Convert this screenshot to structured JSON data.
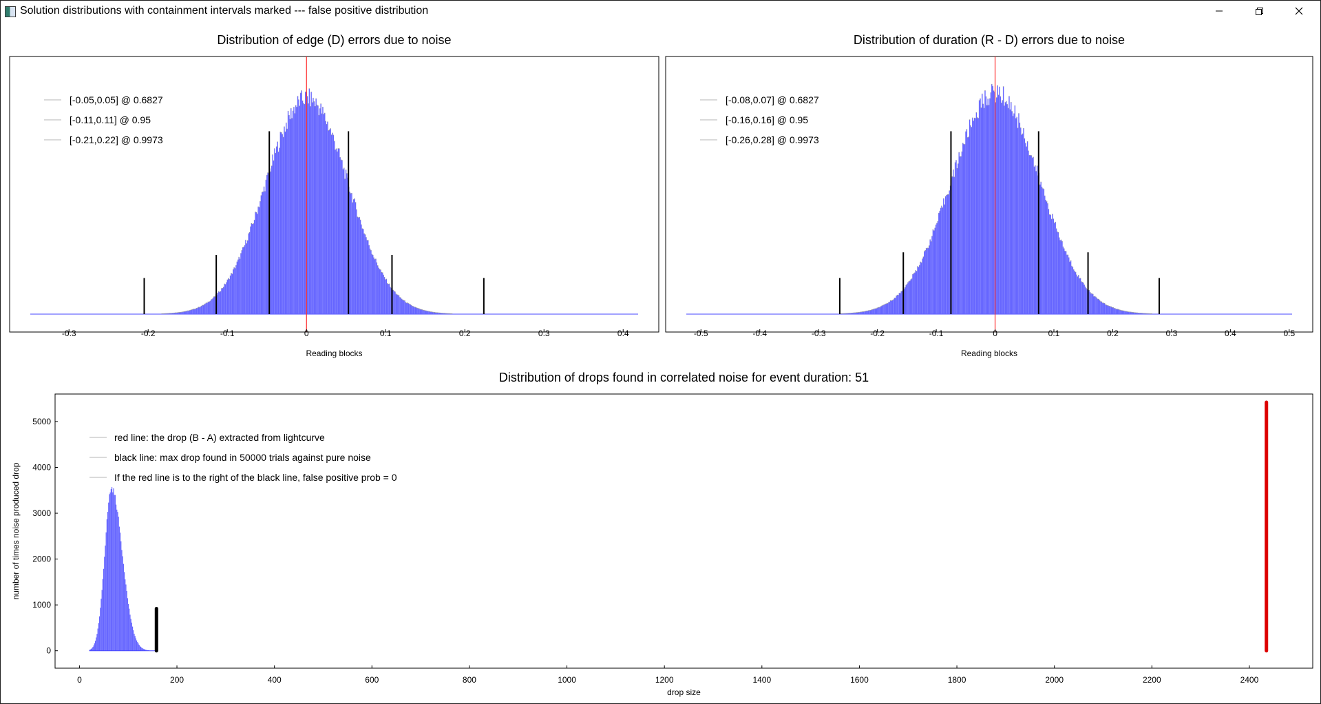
{
  "window": {
    "title": "Solution distributions with containment intervals marked --- false positive distribution",
    "icons": [
      "app-icon",
      "minimize-icon",
      "maximize-icon",
      "close-icon"
    ]
  },
  "colors": {
    "histogram_fill": "#6666ff",
    "histogram_edge": "#a0a0a0",
    "marker_black": "#000000",
    "center_red": "#ff2b2b",
    "drop_red": "#dd0000"
  },
  "chart_data": [
    {
      "type": "bar",
      "title": "Distribution of edge (D) errors due to noise",
      "xlabel": "Reading blocks",
      "ylabel": "",
      "xlim": [
        -0.375,
        0.445
      ],
      "xticks": [
        "-0.3",
        "-0.2",
        "-0.1",
        "0",
        "0.1",
        "0.2",
        "0.3",
        "0.4"
      ],
      "xtick_values": [
        -0.3,
        -0.2,
        -0.1,
        0,
        0.1,
        0.2,
        0.3,
        0.4
      ],
      "y_axis_labels_shown": false,
      "legend_position": "upper-left",
      "legend": [
        "[-0.05,0.05] @ 0.6827",
        "[-0.11,0.11] @ 0.95",
        "[-0.21,0.22] @ 0.9973"
      ],
      "distribution": {
        "shape": "gaussian-histogram",
        "center": 0.0,
        "sigma": 0.052,
        "peak_fraction": 0.86
      },
      "center_line_x": 0,
      "interval_markers": [
        {
          "x": -0.047,
          "height_fraction": 0.71
        },
        {
          "x": 0.053,
          "height_fraction": 0.71
        },
        {
          "x": -0.114,
          "height_fraction": 0.23
        },
        {
          "x": 0.108,
          "height_fraction": 0.23
        },
        {
          "x": -0.205,
          "height_fraction": 0.14
        },
        {
          "x": 0.224,
          "height_fraction": 0.14
        }
      ]
    },
    {
      "type": "bar",
      "title": "Distribution of duration (R - D) errors due to noise",
      "xlabel": "Reading blocks",
      "ylabel": "",
      "xlim": [
        -0.56,
        0.54
      ],
      "xticks": [
        "-0.5",
        "-0.4",
        "-0.3",
        "-0.2",
        "-0.1",
        "0",
        "0.1",
        "0.2",
        "0.3",
        "0.4",
        "0.5"
      ],
      "xtick_values": [
        -0.5,
        -0.4,
        -0.3,
        -0.2,
        -0.1,
        0,
        0.1,
        0.2,
        0.3,
        0.4,
        0.5
      ],
      "y_axis_labels_shown": false,
      "legend_position": "upper-left",
      "legend": [
        "[-0.08,0.07] @ 0.6827",
        "[-0.16,0.16] @ 0.95",
        "[-0.26,0.28] @ 0.9973"
      ],
      "distribution": {
        "shape": "gaussian-histogram",
        "center": 0.0,
        "sigma": 0.075,
        "peak_fraction": 0.88
      },
      "center_line_x": 0,
      "interval_markers": [
        {
          "x": -0.075,
          "height_fraction": 0.71
        },
        {
          "x": 0.074,
          "height_fraction": 0.71
        },
        {
          "x": -0.156,
          "height_fraction": 0.24
        },
        {
          "x": 0.158,
          "height_fraction": 0.24
        },
        {
          "x": -0.264,
          "height_fraction": 0.14
        },
        {
          "x": 0.279,
          "height_fraction": 0.14
        }
      ]
    },
    {
      "type": "bar",
      "title": "Distribution of drops found in correlated noise for event duration: 51",
      "xlabel": "drop size",
      "ylabel": "number of times noise produced drop",
      "xlim": [
        -50,
        2530
      ],
      "ylim": [
        -380,
        5600
      ],
      "xticks": [
        "0",
        "200",
        "400",
        "600",
        "800",
        "1000",
        "1200",
        "1400",
        "1600",
        "1800",
        "2000",
        "2200",
        "2400"
      ],
      "xtick_values": [
        0,
        200,
        400,
        600,
        800,
        1000,
        1200,
        1400,
        1600,
        1800,
        2000,
        2200,
        2400
      ],
      "yticks": [
        "0",
        "1000",
        "2000",
        "3000",
        "4000",
        "5000"
      ],
      "ytick_values": [
        0,
        1000,
        2000,
        3000,
        4000,
        5000
      ],
      "legend_position": "upper-left",
      "legend": [
        "red line: the drop (B - A) extracted from lightcurve",
        "black line: max drop found in 50000 trials against pure noise",
        "If the red line is to the right of the black line, false positive prob = 0"
      ],
      "distribution": {
        "shape": "skewed-histogram",
        "mode": 65,
        "left_sigma": 14,
        "right_sigma": 22,
        "peak": 3580,
        "min_x": 20,
        "max_x": 158
      },
      "black_line": {
        "x": 158,
        "y_top": 920
      },
      "red_line": {
        "x": 2435,
        "y_top": 5420
      }
    }
  ]
}
